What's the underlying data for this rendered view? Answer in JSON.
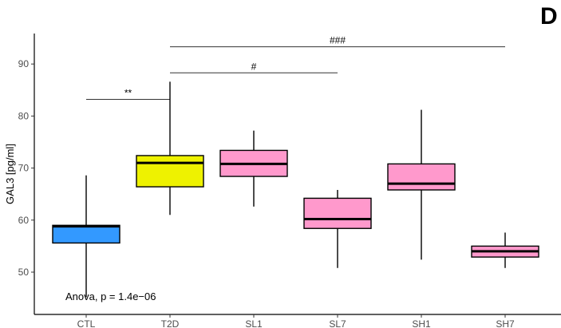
{
  "chart_data": {
    "type": "box",
    "panel_label": "D",
    "ylabel": "GAL3 [pg/ml]",
    "xlabel": "",
    "ylim": [
      43,
      96
    ],
    "yticks": [
      50,
      60,
      70,
      80,
      90
    ],
    "grid": false,
    "legend": "none",
    "categories": [
      "CTL",
      "T2D",
      "SL1",
      "SL7",
      "SH1",
      "SH7"
    ],
    "boxes": [
      {
        "category": "CTL",
        "min": 45.2,
        "q1": 55.6,
        "median": 58.8,
        "q3": 59.0,
        "max": 68.6,
        "color": "#3399FF"
      },
      {
        "category": "T2D",
        "min": 61.0,
        "q1": 66.4,
        "median": 71.0,
        "q3": 72.4,
        "max": 86.6,
        "color": "#EEF200"
      },
      {
        "category": "SL1",
        "min": 62.6,
        "q1": 68.4,
        "median": 70.8,
        "q3": 73.4,
        "max": 77.2,
        "color": "#FF99CC"
      },
      {
        "category": "SL7",
        "min": 50.8,
        "q1": 58.4,
        "median": 60.2,
        "q3": 64.2,
        "max": 65.8,
        "color": "#FF99CC"
      },
      {
        "category": "SH1",
        "min": 52.4,
        "q1": 65.8,
        "median": 67.0,
        "q3": 70.8,
        "max": 81.2,
        "color": "#FF99CC"
      },
      {
        "category": "SH7",
        "min": 50.8,
        "q1": 52.9,
        "median": 54.0,
        "q3": 55.0,
        "max": 57.6,
        "color": "#FF99CC"
      }
    ],
    "significance": [
      {
        "from": "CTL",
        "to": "T2D",
        "y": 83.2,
        "label": "**"
      },
      {
        "from": "T2D",
        "to": "SL7",
        "y": 88.3,
        "label": "#"
      },
      {
        "from": "T2D",
        "to": "SH7",
        "y": 93.3,
        "label": "###"
      }
    ],
    "annotation": "Anova, p = 1.4e−06"
  }
}
